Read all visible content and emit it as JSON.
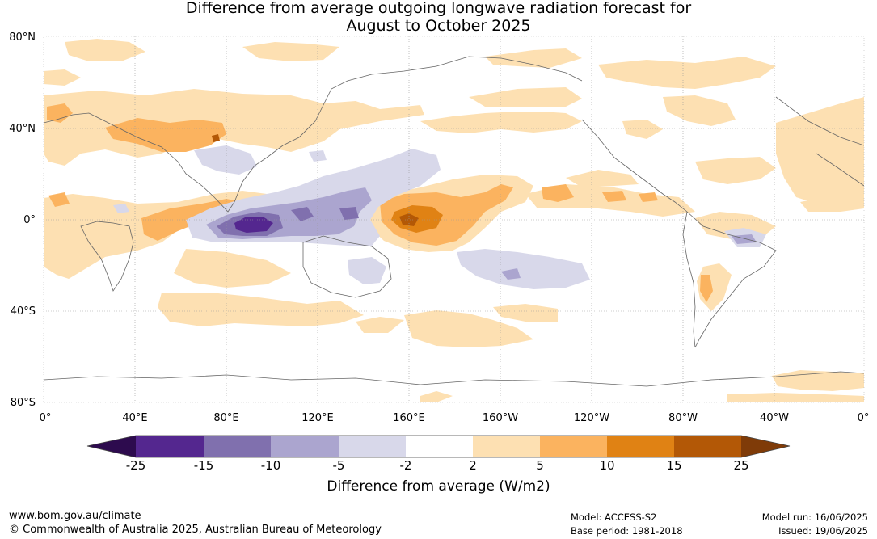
{
  "title_line1": "Difference from average outgoing longwave radiation forecast for",
  "title_line2": "August to October 2025",
  "lat_labels": [
    "80°N",
    "40°N",
    "0°",
    "40°S",
    "80°S"
  ],
  "lon_labels": [
    "0°",
    "40°E",
    "80°E",
    "120°E",
    "160°E",
    "160°W",
    "120°W",
    "80°W",
    "40°W",
    "0°"
  ],
  "colorbar": {
    "ticks": [
      "-25",
      "-15",
      "-10",
      "-5",
      "-2",
      "2",
      "5",
      "10",
      "15",
      "25"
    ],
    "colors": [
      "#2d0b4e",
      "#54278f",
      "#8070ae",
      "#aba5cf",
      "#d8d8ea",
      "#ffffff",
      "#fde0b2",
      "#fbb35f",
      "#e08214",
      "#b35806",
      "#7f3b08"
    ],
    "label": "Difference from average (W/m2)"
  },
  "footer": {
    "website": "www.bom.gov.au/climate",
    "copyright": "© Commonwealth of Australia 2025, Australian Bureau of Meteorology",
    "model": "Model: ACCESS-S2",
    "base_period": "Base period: 1981-2018",
    "model_run": "Model run: 16/06/2025",
    "issued": "Issued: 19/06/2025"
  }
}
